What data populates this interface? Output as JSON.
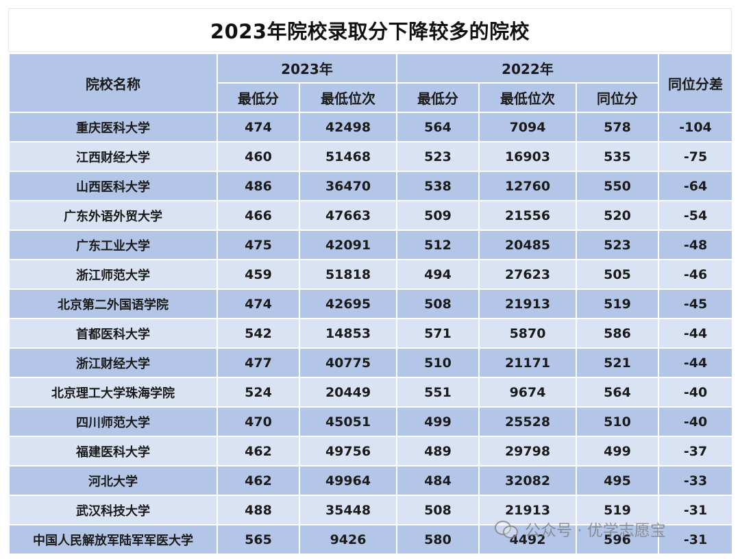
{
  "title": "2023年院校录取分下降较多的院校",
  "header": {
    "school_name": "院校名称",
    "year_2023": "2023年",
    "year_2022": "2022年",
    "same_rank_diff": "同位分差",
    "min_score_2023": "最低分",
    "min_rank_2023": "最低位次",
    "min_score_2022": "最低分",
    "min_rank_2022": "最低位次",
    "same_rank_score": "同位分"
  },
  "rows": [
    {
      "name": "重庆医科大学",
      "s23": "474",
      "r23": "42498",
      "s22": "564",
      "r22": "7094",
      "same": "578",
      "diff": "-104"
    },
    {
      "name": "江西财经大学",
      "s23": "460",
      "r23": "51468",
      "s22": "523",
      "r22": "16903",
      "same": "535",
      "diff": "-75"
    },
    {
      "name": "山西医科大学",
      "s23": "486",
      "r23": "36470",
      "s22": "538",
      "r22": "12760",
      "same": "550",
      "diff": "-64"
    },
    {
      "name": "广东外语外贸大学",
      "s23": "466",
      "r23": "47663",
      "s22": "509",
      "r22": "21556",
      "same": "520",
      "diff": "-54"
    },
    {
      "name": "广东工业大学",
      "s23": "475",
      "r23": "42091",
      "s22": "512",
      "r22": "20485",
      "same": "523",
      "diff": "-48"
    },
    {
      "name": "浙江师范大学",
      "s23": "459",
      "r23": "51818",
      "s22": "494",
      "r22": "27623",
      "same": "505",
      "diff": "-46"
    },
    {
      "name": "北京第二外国语学院",
      "s23": "474",
      "r23": "42695",
      "s22": "508",
      "r22": "21913",
      "same": "519",
      "diff": "-45"
    },
    {
      "name": "首都医科大学",
      "s23": "542",
      "r23": "14853",
      "s22": "571",
      "r22": "5870",
      "same": "586",
      "diff": "-44"
    },
    {
      "name": "浙江财经大学",
      "s23": "477",
      "r23": "40775",
      "s22": "510",
      "r22": "21171",
      "same": "521",
      "diff": "-44"
    },
    {
      "name": "北京理工大学珠海学院",
      "s23": "524",
      "r23": "20449",
      "s22": "551",
      "r22": "9674",
      "same": "564",
      "diff": "-40"
    },
    {
      "name": "四川师范大学",
      "s23": "470",
      "r23": "45051",
      "s22": "499",
      "r22": "25528",
      "same": "510",
      "diff": "-40"
    },
    {
      "name": "福建医科大学",
      "s23": "462",
      "r23": "49756",
      "s22": "489",
      "r22": "29798",
      "same": "499",
      "diff": "-37"
    },
    {
      "name": "河北大学",
      "s23": "462",
      "r23": "49964",
      "s22": "484",
      "r22": "32082",
      "same": "495",
      "diff": "-33"
    },
    {
      "name": "武汉科技大学",
      "s23": "488",
      "r23": "35448",
      "s22": "508",
      "r22": "21913",
      "same": "519",
      "diff": "-31"
    },
    {
      "name": "中国人民解放军陆军军医大学",
      "s23": "565",
      "r23": "9426",
      "s22": "580",
      "r22": "4492",
      "same": "596",
      "diff": "-31"
    }
  ],
  "watermark": {
    "text": "公众号 · 优学志愿宝",
    "icon": "wechat-icon"
  }
}
